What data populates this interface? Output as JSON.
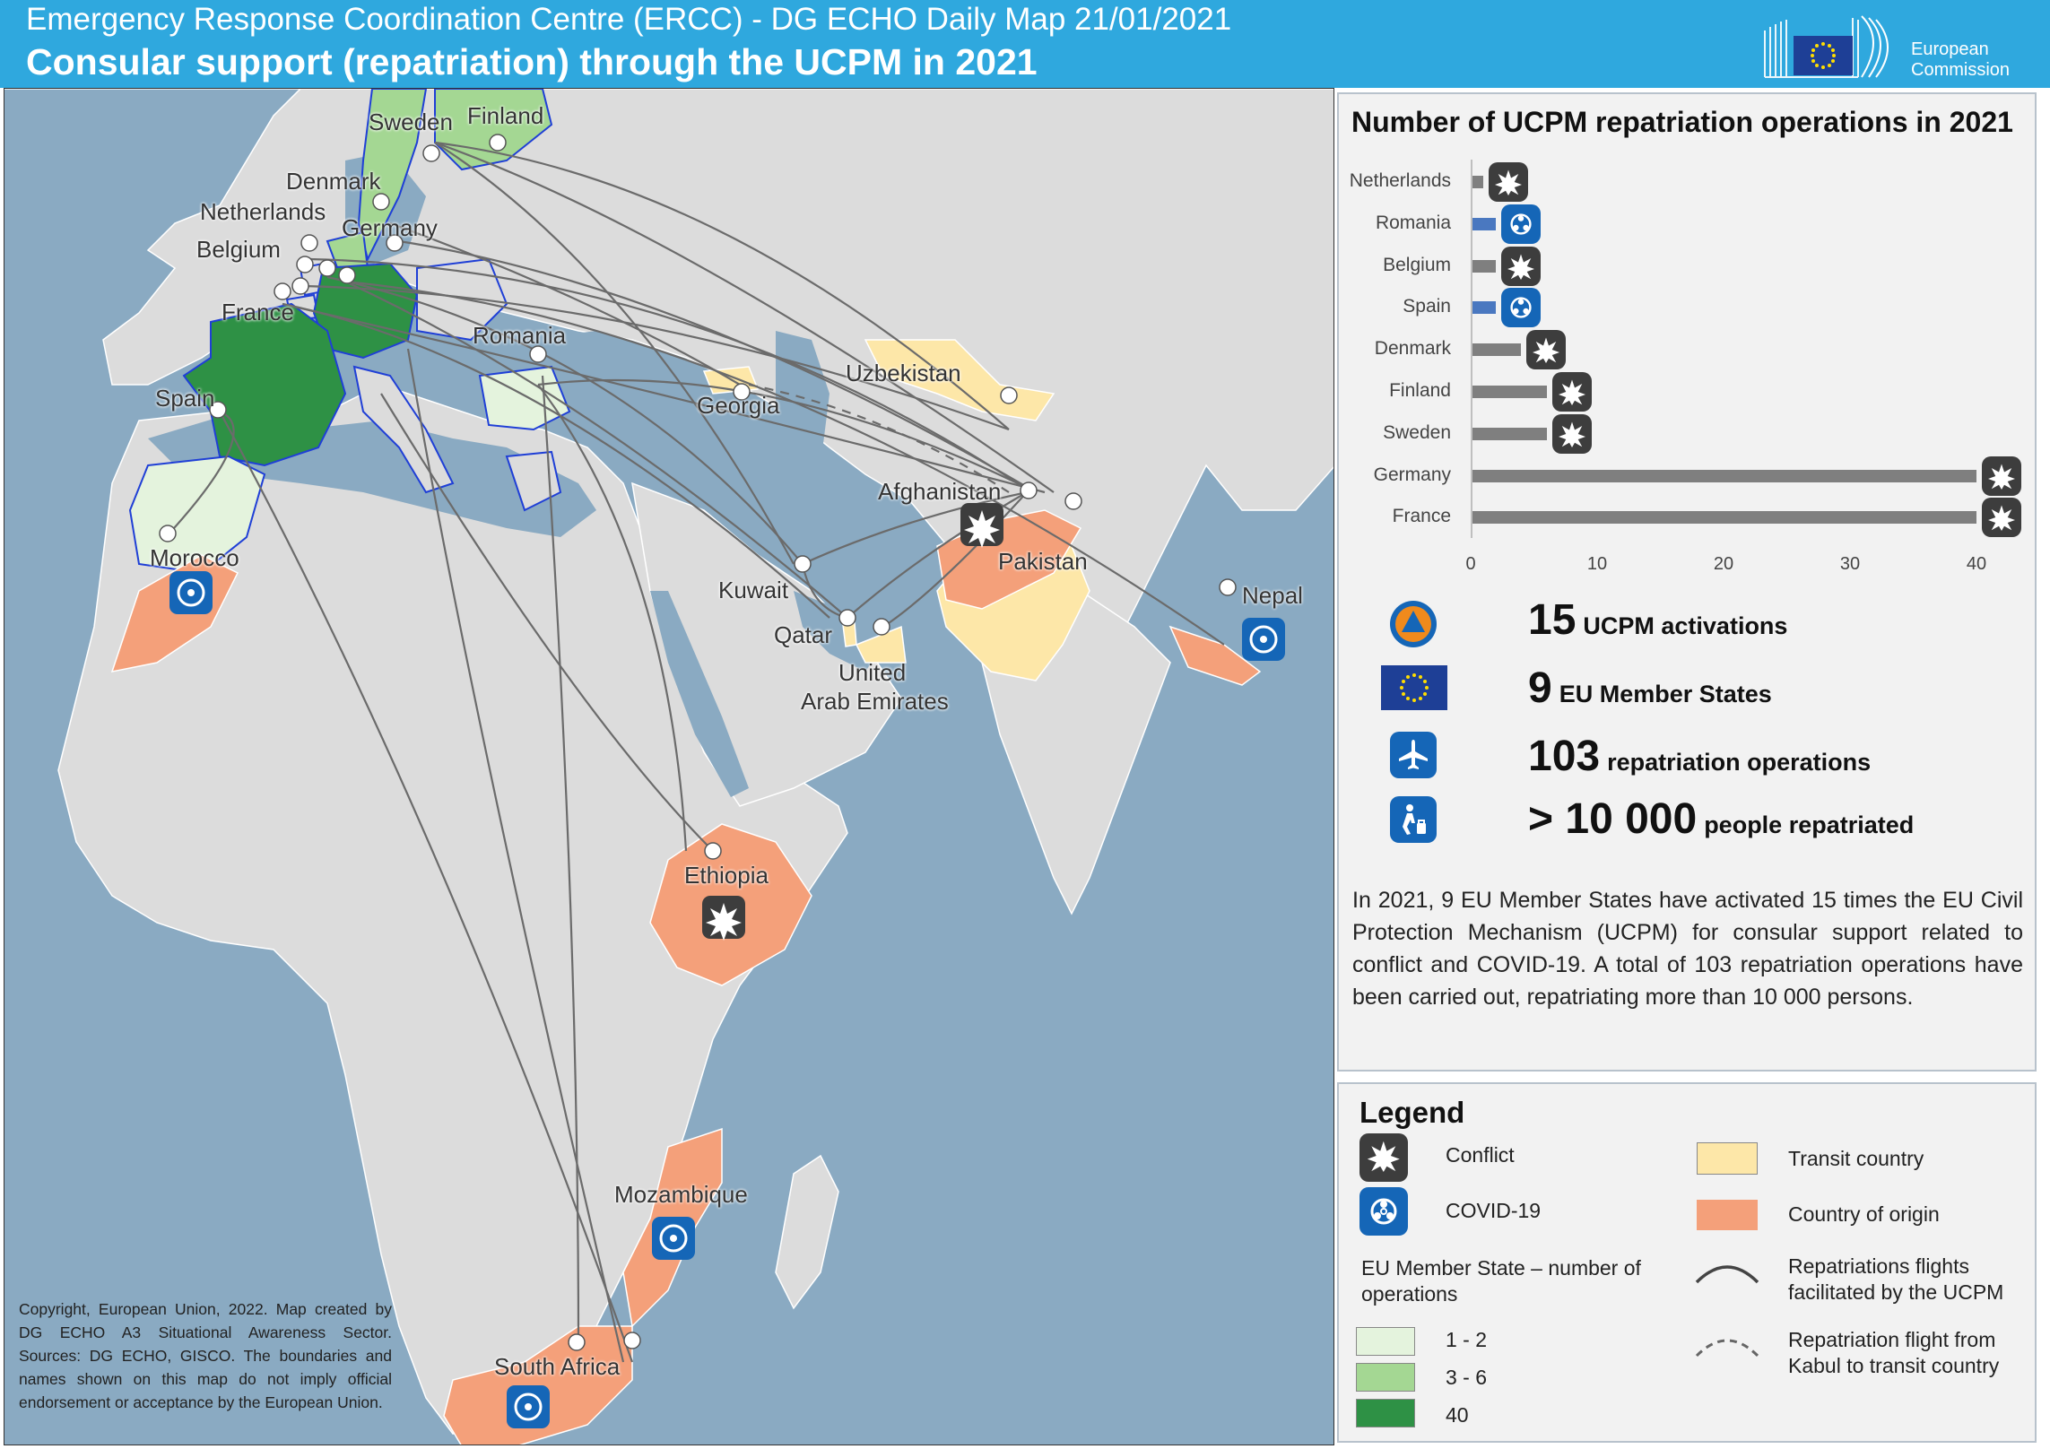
{
  "header": {
    "subtitle": "Emergency Response Coordination Centre (ERCC) - DG ECHO Daily Map 21/01/2021",
    "title": "Consular support (repatriation) through the UCPM in 2021",
    "logo_line1": "European",
    "logo_line2": "Commission"
  },
  "map": {
    "labels": {
      "sweden": "Sweden",
      "finland": "Finland",
      "denmark": "Denmark",
      "netherlands": "Netherlands",
      "germany": "Germany",
      "belgium": "Belgium",
      "france": "France",
      "romania": "Romania",
      "spain": "Spain",
      "georgia": "Georgia",
      "uzbekistan": "Uzbekistan",
      "afghanistan": "Afghanistan",
      "pakistan": "Pakistan",
      "morocco": "Morocco",
      "kuwait": "Kuwait",
      "qatar": "Qatar",
      "uae_line1": "United",
      "uae_line2": "Arab Emirates",
      "nepal": "Nepal",
      "ethiopia": "Ethiopia",
      "mozambique": "Mozambique",
      "south_africa": "South Africa"
    },
    "copyright": "Copyright, European Union, 2022. Map created by DG ECHO A3 Situational Awareness Sector. Sources: DG ECHO, GISCO. The boundaries and names shown on this map do not imply official endorsement or acceptance by the European Union."
  },
  "chart_data": {
    "type": "bar",
    "orientation": "horizontal",
    "title": "Number of UCPM repatriation operations in 2021",
    "categories": [
      "Netherlands",
      "Romania",
      "Belgium",
      "Spain",
      "Denmark",
      "Finland",
      "Sweden",
      "Germany",
      "France"
    ],
    "values": [
      1,
      2,
      2,
      2,
      4,
      6,
      6,
      40,
      40
    ],
    "crisis_type": [
      "Conflict",
      "COVID-19",
      "Conflict",
      "COVID-19",
      "Conflict",
      "Conflict",
      "Conflict",
      "Conflict",
      "Conflict"
    ],
    "bar_colors": {
      "Conflict": "#7f7f7f",
      "COVID-19": "#4a78c0"
    },
    "xlim": [
      0,
      40
    ],
    "xticks": [
      0,
      10,
      20,
      30,
      40
    ],
    "grid": false
  },
  "stats": [
    {
      "number": "15",
      "label": "UCPM activations",
      "icon": "civil-protection-icon"
    },
    {
      "number": "9",
      "label": "EU Member States",
      "icon": "eu-flag-icon"
    },
    {
      "number": "103",
      "label": "repatriation operations",
      "icon": "airplane-icon"
    },
    {
      "number": "> 10 000",
      "label": "people repatriated",
      "icon": "person-travelling-icon"
    }
  ],
  "description": "In 2021, 9 EU Member States have activated 15 times the EU Civil Protection Mechanism (UCPM) for consular support related to conflict and COVID-19. A total of 103 repatriation operations have been carried out, repatriating more than 10 000 persons.",
  "legend": {
    "title": "Legend",
    "conflict": "Conflict",
    "covid": "COVID-19",
    "transit": "Transit country",
    "origin": "Country of origin",
    "member_state_line1": "EU Member State – number of",
    "member_state_line2": "operations",
    "range1": "1 - 2",
    "range2": "3 - 6",
    "range3": "40",
    "flights_line1": "Repatriations flights",
    "flights_line2": "facilitated by the UCPM",
    "kabul_line1": "Repatriation flight from",
    "kabul_line2": "Kabul to transit country"
  },
  "colors": {
    "header": "#2fa8de",
    "sea": "#8aaac2",
    "land": "#dcdcdc",
    "origin": "#f4a07a",
    "transit": "#fde7a8",
    "ms_1_2": "#e4f3dd",
    "ms_3_6": "#a4d793",
    "ms_40": "#2e9145",
    "conflict_icon_bg": "#3d3d3d",
    "covid_icon_bg": "#1566b7"
  }
}
